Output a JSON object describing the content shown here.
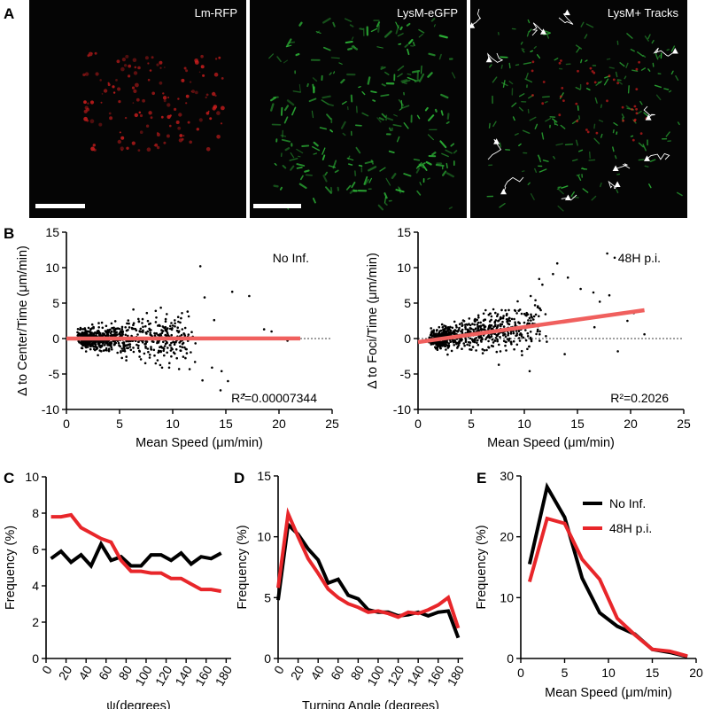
{
  "figure": {
    "panel_letters": {
      "A": "A",
      "B": "B",
      "C": "C",
      "D": "D",
      "E": "E"
    }
  },
  "micrographs": [
    {
      "title": "Lm-RFP",
      "channel": "red",
      "color": "#d21e1e",
      "has_scale_bar": true
    },
    {
      "title": "LysM-eGFP",
      "channel": "green",
      "color": "#2fc03a",
      "has_scale_bar": true
    },
    {
      "title": "LysM+ Tracks",
      "channel": "merge",
      "color": "#ffffff",
      "has_scale_bar": false
    }
  ],
  "colors": {
    "black": "#000000",
    "red": "#e8262a",
    "fit": "#f0605e",
    "dots": "#000000"
  },
  "chart_data": [
    {
      "panel": "B",
      "type": "scatter",
      "title": "No Inf.",
      "xlabel": "Mean Speed (μm/min)",
      "ylabel": "Δ to Center/Time (μm/min)",
      "xlim": [
        0,
        25
      ],
      "ylim": [
        -10,
        15
      ],
      "xticks": [
        "0",
        "5",
        "10",
        "15",
        "20",
        "25"
      ],
      "yticks": [
        "-10",
        "-5",
        "0",
        "5",
        "10",
        "15"
      ],
      "annotation": "R²=0.00007344",
      "fit_line": {
        "x": [
          0,
          22
        ],
        "y": [
          0.0,
          0.02
        ]
      },
      "zero_line": true,
      "points_seed": 7,
      "points_trend": 0.0,
      "points": [
        [
          12.6,
          10.2
        ],
        [
          15.6,
          6.6
        ],
        [
          17.2,
          6.0
        ],
        [
          13.0,
          5.8
        ],
        [
          11.4,
          3.8
        ],
        [
          12.8,
          -5.9
        ],
        [
          14.5,
          -7.3
        ],
        [
          15.2,
          -6.0
        ],
        [
          16.7,
          -7.9
        ],
        [
          14.6,
          -4.6
        ],
        [
          13.7,
          -4.1
        ],
        [
          10.6,
          -4.3
        ],
        [
          9.0,
          -4.1
        ],
        [
          18.6,
          1.3
        ],
        [
          19.3,
          1.0
        ],
        [
          20.8,
          -0.3
        ],
        [
          13.9,
          2.6
        ],
        [
          8.4,
          3.9
        ],
        [
          6.3,
          4.1
        ],
        [
          12.1,
          -3.3
        ]
      ]
    },
    {
      "panel": "B",
      "type": "scatter",
      "title": "48H p.i.",
      "xlabel": "Mean Speed (μm/min)",
      "ylabel": "Δ to Foci/Time (μm/min)",
      "xlim": [
        0,
        25
      ],
      "ylim": [
        -10,
        15
      ],
      "xticks": [
        "0",
        "5",
        "10",
        "15",
        "20",
        "25"
      ],
      "yticks": [
        "-10",
        "-5",
        "0",
        "5",
        "10",
        "15"
      ],
      "annotation": "R²=0.2026",
      "fit_line": {
        "x": [
          0,
          21.3
        ],
        "y": [
          -0.5,
          4.0
        ]
      },
      "zero_line": true,
      "points_seed": 19,
      "points_trend": 0.21,
      "points": [
        [
          17.8,
          12.0
        ],
        [
          18.5,
          11.4
        ],
        [
          13.1,
          10.6
        ],
        [
          12.7,
          9.1
        ],
        [
          14.1,
          8.6
        ],
        [
          11.4,
          8.4
        ],
        [
          15.3,
          7.0
        ],
        [
          16.5,
          6.5
        ],
        [
          18.0,
          6.1
        ],
        [
          20.3,
          3.6
        ],
        [
          19.7,
          2.5
        ],
        [
          17.1,
          5.2
        ],
        [
          11.7,
          7.6
        ],
        [
          10.6,
          6.0
        ],
        [
          18.8,
          -1.8
        ],
        [
          21.3,
          0.6
        ],
        [
          7.6,
          -3.7
        ],
        [
          10.5,
          -4.6
        ],
        [
          13.8,
          -2.2
        ],
        [
          16.6,
          1.6
        ]
      ]
    },
    {
      "panel": "C",
      "type": "line",
      "xlabel": "ψ(degrees)",
      "ylabel": "Frequency (%)",
      "xlim": [
        0,
        185
      ],
      "ylim": [
        0,
        10
      ],
      "xticks": [
        "0",
        "20",
        "40",
        "60",
        "80",
        "100",
        "120",
        "140",
        "160",
        "180"
      ],
      "yticks": [
        "0",
        "2",
        "4",
        "6",
        "8",
        "10"
      ],
      "series": [
        {
          "x": [
            5,
            15,
            25,
            35,
            45,
            55,
            65,
            75,
            85,
            95,
            105,
            115,
            125,
            135,
            145,
            155,
            165,
            175
          ],
          "values": [
            5.5,
            5.9,
            5.3,
            5.7,
            5.1,
            6.3,
            5.4,
            5.6,
            5.1,
            5.1,
            5.7,
            5.7,
            5.4,
            5.8,
            5.2,
            5.6,
            5.5,
            5.8
          ],
          "color": "#000000"
        },
        {
          "x": [
            5,
            15,
            25,
            35,
            45,
            55,
            65,
            75,
            85,
            95,
            105,
            115,
            125,
            135,
            145,
            155,
            165,
            175
          ],
          "values": [
            7.8,
            7.8,
            7.9,
            7.2,
            6.9,
            6.6,
            6.4,
            5.4,
            4.8,
            4.8,
            4.7,
            4.7,
            4.4,
            4.4,
            4.1,
            3.8,
            3.8,
            3.7
          ],
          "color": "#e8262a"
        }
      ]
    },
    {
      "panel": "D",
      "type": "line",
      "xlabel": "Turning Angle (degrees)",
      "ylabel": "Frequency (%)",
      "xlim": [
        0,
        185
      ],
      "ylim": [
        0,
        15
      ],
      "xticks": [
        "0",
        "20",
        "40",
        "60",
        "80",
        "100",
        "120",
        "140",
        "160",
        "180"
      ],
      "yticks": [
        "0",
        "5",
        "10",
        "15"
      ],
      "series": [
        {
          "x": [
            0,
            10,
            20,
            30,
            40,
            50,
            60,
            70,
            80,
            90,
            100,
            110,
            120,
            130,
            140,
            150,
            160,
            170,
            180
          ],
          "values": [
            4.8,
            11.0,
            10.2,
            9.0,
            8.1,
            6.2,
            6.5,
            5.2,
            4.9,
            4.0,
            3.8,
            3.8,
            3.5,
            3.6,
            3.8,
            3.5,
            3.8,
            3.9,
            1.7
          ],
          "color": "#000000"
        },
        {
          "x": [
            0,
            10,
            20,
            30,
            40,
            50,
            60,
            70,
            80,
            90,
            100,
            110,
            120,
            130,
            140,
            150,
            160,
            170,
            180
          ],
          "values": [
            5.8,
            11.9,
            10.0,
            8.2,
            7.0,
            5.7,
            5.0,
            4.5,
            4.2,
            3.8,
            3.9,
            3.7,
            3.4,
            3.8,
            3.7,
            4.0,
            4.4,
            5.0,
            2.5
          ],
          "color": "#e8262a"
        }
      ]
    },
    {
      "panel": "E",
      "type": "line",
      "xlabel": "Mean Speed (μm/min)",
      "ylabel": "Frequency (%)",
      "xlim": [
        0,
        20
      ],
      "ylim": [
        0,
        30
      ],
      "xticks": [
        "0",
        "5",
        "10",
        "15",
        "20"
      ],
      "yticks": [
        "0",
        "10",
        "20",
        "30"
      ],
      "series": [
        {
          "name": "No Inf.",
          "x": [
            1,
            3,
            5,
            7,
            9,
            11,
            13,
            15,
            17,
            19
          ],
          "values": [
            15.5,
            28.2,
            23.2,
            13.2,
            7.5,
            5.3,
            4.0,
            1.5,
            1.0,
            0.3
          ],
          "color": "#000000"
        },
        {
          "name": "48H p.i.",
          "x": [
            1,
            3,
            5,
            7,
            9,
            11,
            13,
            15,
            17,
            19
          ],
          "values": [
            12.6,
            23.0,
            22.2,
            16.3,
            13.0,
            6.6,
            3.9,
            1.5,
            1.2,
            0.4
          ],
          "color": "#e8262a"
        }
      ],
      "legend": "top-right"
    }
  ]
}
